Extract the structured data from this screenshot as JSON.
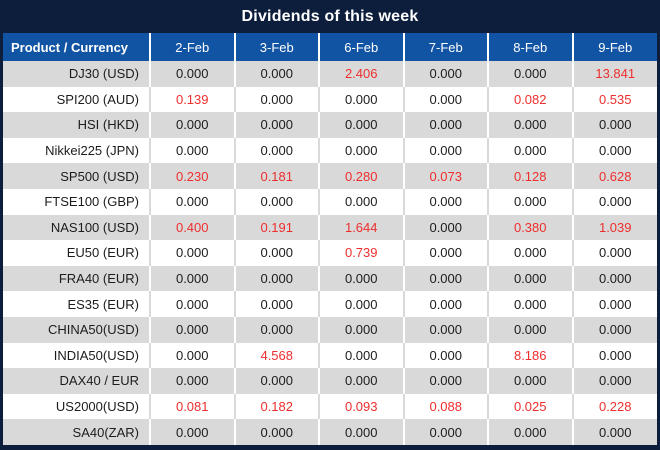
{
  "title": "Dividends of this week",
  "table": {
    "product_header": "Product / Currency",
    "date_headers": [
      "2-Feb",
      "3-Feb",
      "6-Feb",
      "7-Feb",
      "8-Feb",
      "9-Feb"
    ],
    "rows": [
      {
        "product": "DJ30 (USD)",
        "values": [
          "0.000",
          "0.000",
          "2.406",
          "0.000",
          "0.000",
          "13.841"
        ],
        "red": [
          false,
          false,
          true,
          false,
          false,
          true
        ]
      },
      {
        "product": "SPI200 (AUD)",
        "values": [
          "0.139",
          "0.000",
          "0.000",
          "0.000",
          "0.082",
          "0.535"
        ],
        "red": [
          true,
          false,
          false,
          false,
          true,
          true
        ]
      },
      {
        "product": "HSI (HKD)",
        "values": [
          "0.000",
          "0.000",
          "0.000",
          "0.000",
          "0.000",
          "0.000"
        ],
        "red": [
          false,
          false,
          false,
          false,
          false,
          false
        ]
      },
      {
        "product": "Nikkei225 (JPN)",
        "values": [
          "0.000",
          "0.000",
          "0.000",
          "0.000",
          "0.000",
          "0.000"
        ],
        "red": [
          false,
          false,
          false,
          false,
          false,
          false
        ]
      },
      {
        "product": "SP500 (USD)",
        "values": [
          "0.230",
          "0.181",
          "0.280",
          "0.073",
          "0.128",
          "0.628"
        ],
        "red": [
          true,
          true,
          true,
          true,
          true,
          true
        ]
      },
      {
        "product": "FTSE100 (GBP)",
        "values": [
          "0.000",
          "0.000",
          "0.000",
          "0.000",
          "0.000",
          "0.000"
        ],
        "red": [
          false,
          false,
          false,
          false,
          false,
          false
        ]
      },
      {
        "product": "NAS100 (USD)",
        "values": [
          "0.400",
          "0.191",
          "1.644",
          "0.000",
          "0.380",
          "1.039"
        ],
        "red": [
          true,
          true,
          true,
          false,
          true,
          true
        ]
      },
      {
        "product": "EU50 (EUR)",
        "values": [
          "0.000",
          "0.000",
          "0.739",
          "0.000",
          "0.000",
          "0.000"
        ],
        "red": [
          false,
          false,
          true,
          false,
          false,
          false
        ]
      },
      {
        "product": "FRA40 (EUR)",
        "values": [
          "0.000",
          "0.000",
          "0.000",
          "0.000",
          "0.000",
          "0.000"
        ],
        "red": [
          false,
          false,
          false,
          false,
          false,
          false
        ]
      },
      {
        "product": "ES35 (EUR)",
        "values": [
          "0.000",
          "0.000",
          "0.000",
          "0.000",
          "0.000",
          "0.000"
        ],
        "red": [
          false,
          false,
          false,
          false,
          false,
          false
        ]
      },
      {
        "product": "CHINA50(USD)",
        "values": [
          "0.000",
          "0.000",
          "0.000",
          "0.000",
          "0.000",
          "0.000"
        ],
        "red": [
          false,
          false,
          false,
          false,
          false,
          false
        ]
      },
      {
        "product": "INDIA50(USD)",
        "values": [
          "0.000",
          "4.568",
          "0.000",
          "0.000",
          "8.186",
          "0.000"
        ],
        "red": [
          false,
          true,
          false,
          false,
          true,
          false
        ]
      },
      {
        "product": "DAX40 / EUR",
        "values": [
          "0.000",
          "0.000",
          "0.000",
          "0.000",
          "0.000",
          "0.000"
        ],
        "red": [
          false,
          false,
          false,
          false,
          false,
          false
        ]
      },
      {
        "product": "US2000(USD)",
        "values": [
          "0.081",
          "0.182",
          "0.093",
          "0.088",
          "0.025",
          "0.228"
        ],
        "red": [
          true,
          true,
          true,
          true,
          true,
          true
        ]
      },
      {
        "product": "SA40(ZAR)",
        "values": [
          "0.000",
          "0.000",
          "0.000",
          "0.000",
          "0.000",
          "0.000"
        ],
        "red": [
          false,
          false,
          false,
          false,
          false,
          false
        ]
      }
    ]
  },
  "colors": {
    "navy": "#0d1e3c",
    "headerBlue": "#1254a4",
    "rowAlt": "#d9d9d9",
    "red": "#ee2e2e",
    "ink": "#1c1c1c"
  }
}
